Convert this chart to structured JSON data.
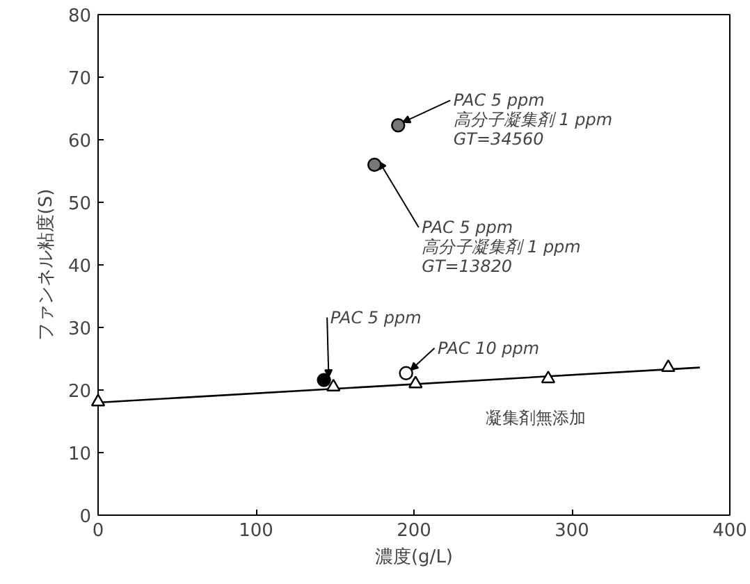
{
  "chart_data": {
    "type": "scatter",
    "xlabel": "濃度(g/L)",
    "ylabel": "ファンネル粘度(S)",
    "xlim": [
      0,
      400
    ],
    "xticks": [
      0,
      100,
      200,
      300,
      400
    ],
    "ylim": [
      0,
      80
    ],
    "yticks": [
      0,
      10,
      20,
      30,
      40,
      50,
      60,
      70,
      80
    ],
    "grid": false,
    "legend": false,
    "series": [
      {
        "name": "凝集剤無添加",
        "color": "#ffffff",
        "marker": "triangle",
        "x": [
          0,
          149,
          201,
          285,
          361
        ],
        "values": [
          18.1,
          20.5,
          21,
          21.8,
          23.6
        ]
      },
      {
        "type": "line",
        "color": "#000000",
        "x": [
          0,
          381
        ],
        "values": [
          18,
          23.6
        ]
      },
      {
        "color": "#000000",
        "marker": "circle",
        "x": [
          143
        ],
        "values": [
          21.6
        ]
      },
      {
        "color": "#ffffff",
        "marker": "circle",
        "x": [
          195
        ],
        "values": [
          22.7
        ]
      },
      {
        "color": "#777777",
        "marker": "circle",
        "x": [
          175,
          190
        ],
        "values": [
          56,
          62.3
        ]
      }
    ],
    "annotations": [
      {
        "text": "PAC 5 ppm\n高分子凝集剤 1 ppm\nGT=34560",
        "x": 190,
        "y": 62.3
      },
      {
        "text": "PAC 5 ppm\n高分子凝集剤 1 ppm\nGT=13820",
        "x": 175,
        "y": 56
      },
      {
        "text": "PAC 5 ppm",
        "x": 143,
        "y": 21.6
      },
      {
        "text": "PAC 10 ppm",
        "x": 195,
        "y": 22.7
      }
    ]
  }
}
